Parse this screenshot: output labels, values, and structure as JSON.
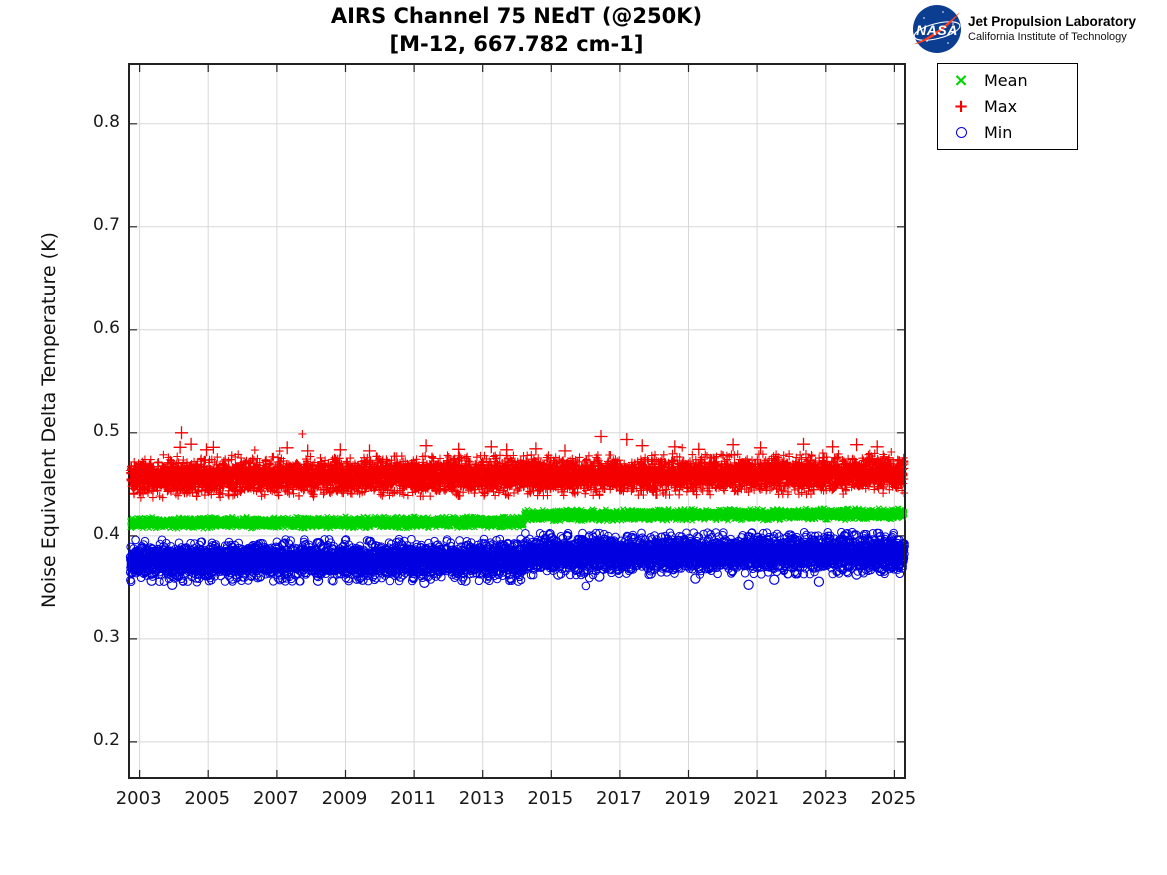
{
  "header": {
    "title": "AIRS Channel 75 NEdT (@250K)",
    "subtitle": "[M-12, 667.782 cm-1]",
    "branding": {
      "logo": "nasa-meatball-logo",
      "logo_text": "NASA",
      "org_name": "Jet Propulsion Laboratory",
      "org_sub": "California Institute of Technology",
      "logo_blue": "#0b3d91",
      "logo_red": "#fc3d21"
    }
  },
  "legend": {
    "position": "top-right-outside",
    "items": [
      {
        "label": "Mean",
        "marker": "x",
        "color": "#00d400"
      },
      {
        "label": "Max",
        "marker": "+",
        "color": "#f40000"
      },
      {
        "label": "Min",
        "marker": "o",
        "color": "#0000e0"
      }
    ]
  },
  "chart_data": {
    "type": "scatter",
    "title": "AIRS Channel 75 NEdT (@250K)",
    "subtitle": "[M-12, 667.782 cm-1]",
    "xlabel": "",
    "ylabel": "Noise Equivalent Delta Temperature (K)",
    "xlim": [
      2002.69,
      2025.31
    ],
    "ylim": [
      0.165,
      0.858
    ],
    "xticks": [
      2003,
      2005,
      2007,
      2009,
      2011,
      2013,
      2015,
      2017,
      2019,
      2021,
      2023,
      2025
    ],
    "yticks": [
      0.2,
      0.3,
      0.4,
      0.5,
      0.6,
      0.7,
      0.8
    ],
    "grid": true,
    "grid_color": "#d8d8d8",
    "axis_color": "#222222",
    "legend_position": "outside-top-right",
    "series": [
      {
        "name": "Mean",
        "marker": "x",
        "color": "#00d400",
        "marker_half_size": 2.6,
        "stroke_width": 1.1,
        "points_per_year": 300,
        "segments": [
          {
            "x": [
              2002.72,
              2014.2
            ],
            "center": [
              0.4125,
              0.4135
            ],
            "spread": 0.0022
          },
          {
            "x": [
              2014.2,
              2025.3
            ],
            "center": [
              0.4198,
              0.4212
            ],
            "spread": 0.0022
          }
        ],
        "outliers": []
      },
      {
        "name": "Max",
        "marker": "+",
        "color": "#f40000",
        "marker_half_size": 4,
        "stroke_width": 1.1,
        "points_per_year": 320,
        "segments": [
          {
            "x": [
              2002.72,
              2025.3
            ],
            "center": [
              0.4565,
              0.4605
            ],
            "spread": 0.0075
          }
        ],
        "tail": {
          "prob": 0.05,
          "scale": 0.004,
          "cap": 0.022,
          "sign": 1
        },
        "outlier_half_size": 6.5,
        "outliers": [
          [
            2004.22,
            0.5
          ],
          [
            2004.18,
            0.486
          ],
          [
            2004.5,
            0.489
          ],
          [
            2004.95,
            0.4835
          ],
          [
            2005.15,
            0.486
          ],
          [
            2007.3,
            0.4855
          ],
          [
            2007.9,
            0.4825
          ],
          [
            2008.85,
            0.4835
          ],
          [
            2009.7,
            0.4825
          ],
          [
            2011.35,
            0.4875
          ],
          [
            2012.3,
            0.484
          ],
          [
            2013.25,
            0.4865
          ],
          [
            2013.7,
            0.4835
          ],
          [
            2014.55,
            0.4845
          ],
          [
            2015.4,
            0.4825
          ],
          [
            2016.45,
            0.4965
          ],
          [
            2017.2,
            0.4935
          ],
          [
            2017.65,
            0.4875
          ],
          [
            2018.6,
            0.4865
          ],
          [
            2019.3,
            0.484
          ],
          [
            2020.3,
            0.4885
          ],
          [
            2021.1,
            0.4855
          ],
          [
            2022.35,
            0.489
          ],
          [
            2023.2,
            0.4865
          ],
          [
            2023.9,
            0.4885
          ],
          [
            2024.5,
            0.4865
          ]
        ]
      },
      {
        "name": "Min",
        "marker": "o",
        "color": "#0000e0",
        "marker_half_size": 3.8,
        "stroke_width": 1.0,
        "points_per_year": 300,
        "segments": [
          {
            "x": [
              2002.72,
              2014.2
            ],
            "center": [
              0.3758,
              0.3768
            ],
            "spread": 0.0078
          },
          {
            "x": [
              2014.2,
              2025.3
            ],
            "center": [
              0.3822,
              0.3835
            ],
            "spread": 0.0078
          }
        ],
        "tail": {
          "prob": 0.04,
          "scale": 0.0035,
          "cap": 0.018,
          "sign": -1
        },
        "outlier_half_size": 4.6,
        "outliers": [
          [
            2003.35,
            0.3565
          ],
          [
            2003.95,
            0.3525
          ],
          [
            2004.65,
            0.3595
          ],
          [
            2005.7,
            0.3585
          ],
          [
            2006.5,
            0.3605
          ],
          [
            2007.05,
            0.3595
          ],
          [
            2008.2,
            0.3565
          ],
          [
            2009.5,
            0.3575
          ],
          [
            2010.6,
            0.3605
          ],
          [
            2011.3,
            0.3545
          ],
          [
            2012.5,
            0.3565
          ],
          [
            2013.8,
            0.3595
          ],
          [
            2015.2,
            0.3625
          ],
          [
            2016.4,
            0.3605
          ],
          [
            2017.9,
            0.3635
          ],
          [
            2019.2,
            0.3585
          ],
          [
            2020.75,
            0.3525
          ],
          [
            2021.5,
            0.3575
          ],
          [
            2022.8,
            0.3555
          ],
          [
            2023.9,
            0.3625
          ],
          [
            2024.6,
            0.366
          ]
        ]
      }
    ]
  }
}
